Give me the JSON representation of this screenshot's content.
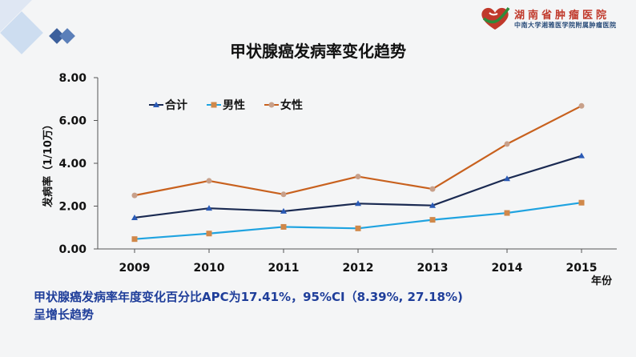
{
  "header": {
    "hospital_name": "湖南省肿瘤医院",
    "hospital_subtitle": "中南大学湘雅医学院附属肿瘤医院"
  },
  "caption": {
    "line1": "甲状腺癌发病率年度变化百分比APC为17.41%，95%CI（8.39%, 27.18%)",
    "line2": "呈增长趋势"
  },
  "colors": {
    "caption": "#1f3e9a",
    "logo_red": "#c0392b",
    "logo_green": "#2e8b3a",
    "corner_blue": "#3b5f9c"
  },
  "chart_data": {
    "type": "line",
    "title": "甲状腺癌发病率变化趋势",
    "xlabel": "年份",
    "ylabel": "发病率（1/10万）",
    "categories": [
      "2009",
      "2010",
      "2011",
      "2012",
      "2013",
      "2014",
      "2015"
    ],
    "ylim": [
      0,
      8
    ],
    "yticks": [
      "0.00",
      "2.00",
      "4.00",
      "6.00",
      "8.00"
    ],
    "grid": false,
    "legend": "top-left",
    "series": [
      {
        "name": "合计",
        "color": "#1a2a52",
        "marker": "triangle",
        "values": [
          1.46,
          1.9,
          1.76,
          2.12,
          2.03,
          3.28,
          4.35
        ]
      },
      {
        "name": "男性",
        "color": "#1fa3e0",
        "marker": "square",
        "values": [
          0.46,
          0.72,
          1.03,
          0.96,
          1.36,
          1.68,
          2.16
        ]
      },
      {
        "name": "女性",
        "color": "#c8611e",
        "marker": "circle",
        "values": [
          2.5,
          3.18,
          2.55,
          3.38,
          2.8,
          4.9,
          6.68
        ]
      }
    ]
  }
}
